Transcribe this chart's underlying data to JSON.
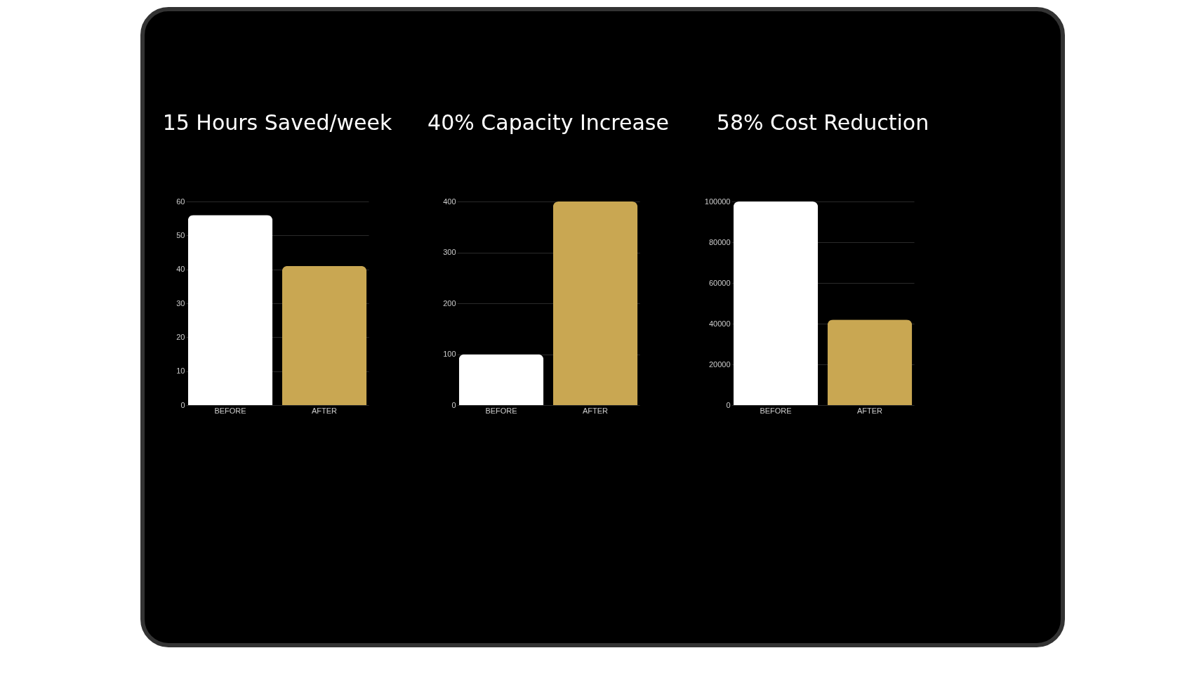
{
  "chart_data": [
    {
      "type": "bar",
      "title": "15 Hours Saved/week",
      "categories": [
        "BEFORE",
        "AFTER"
      ],
      "values": [
        56,
        41
      ],
      "colors": [
        "#ffffff",
        "#c9a752"
      ],
      "ylim": [
        0,
        60
      ],
      "yticks": [
        0,
        10,
        20,
        30,
        40,
        50,
        60
      ],
      "grid": "y"
    },
    {
      "type": "bar",
      "title": "40% Capacity Increase",
      "categories": [
        "BEFORE",
        "AFTER"
      ],
      "values": [
        100,
        400
      ],
      "colors": [
        "#ffffff",
        "#c9a752"
      ],
      "ylim": [
        0,
        400
      ],
      "yticks": [
        0,
        100,
        200,
        300,
        400
      ],
      "grid": "y"
    },
    {
      "type": "bar",
      "title": "58% Cost Reduction",
      "categories": [
        "BEFORE",
        "AFTER"
      ],
      "values": [
        100000,
        42000
      ],
      "colors": [
        "#ffffff",
        "#c9a752"
      ],
      "ylim": [
        0,
        100000
      ],
      "yticks": [
        0,
        20000,
        40000,
        60000,
        80000,
        100000
      ],
      "grid": "y"
    }
  ]
}
